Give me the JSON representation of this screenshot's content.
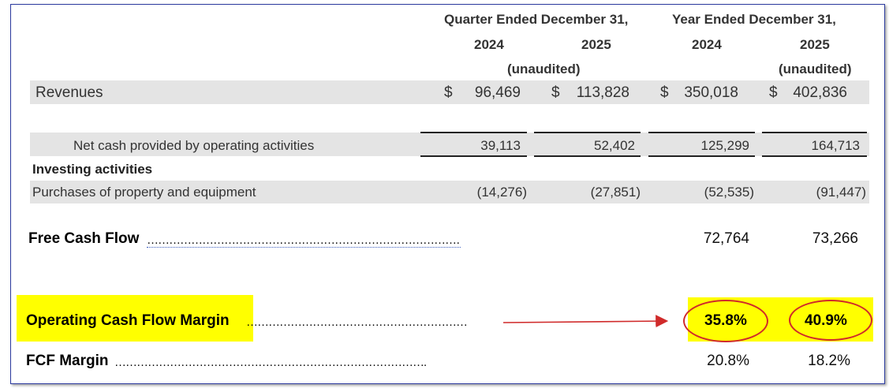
{
  "header": {
    "quarter_label": "Quarter Ended December 31,",
    "year_label": "Year Ended December 31,",
    "q_2024": "2024",
    "q_2025": "2025",
    "y_2024": "2024",
    "y_2025": "2025",
    "q_unaudited": "(unaudited)",
    "y_unaudited": "(unaudited)"
  },
  "revenues": {
    "label": "Revenues",
    "cur": [
      "$",
      "$",
      "$",
      "$"
    ],
    "values": [
      "96,469",
      "113,828",
      "350,018",
      "402,836"
    ]
  },
  "operating": {
    "label": "Net cash provided by operating activities",
    "values": [
      "39,113",
      "52,402",
      "125,299",
      "164,713"
    ]
  },
  "investing": {
    "section_label": "Investing activities",
    "label": "Purchases of property and equipment",
    "values": [
      "(14,276)",
      "(27,851)",
      "(52,535)",
      "(91,447)"
    ]
  },
  "fcf": {
    "label": "Free Cash Flow",
    "dots": "……………………………………………………………………………",
    "values": [
      "72,764",
      "73,266"
    ]
  },
  "ocf_margin": {
    "label": "Operating Cash Flow Margin",
    "dots": "…………………………………………………….",
    "values": [
      "35.8%",
      "40.9%"
    ]
  },
  "fcf_margin": {
    "label": "FCF Margin",
    "dots": "………………………………………………………………………….",
    "values": [
      "20.8%",
      "18.2%"
    ]
  },
  "colors": {
    "highlight": "#ffff00",
    "annotation": "#d02a2a",
    "row_band": "#e4e4e4"
  }
}
